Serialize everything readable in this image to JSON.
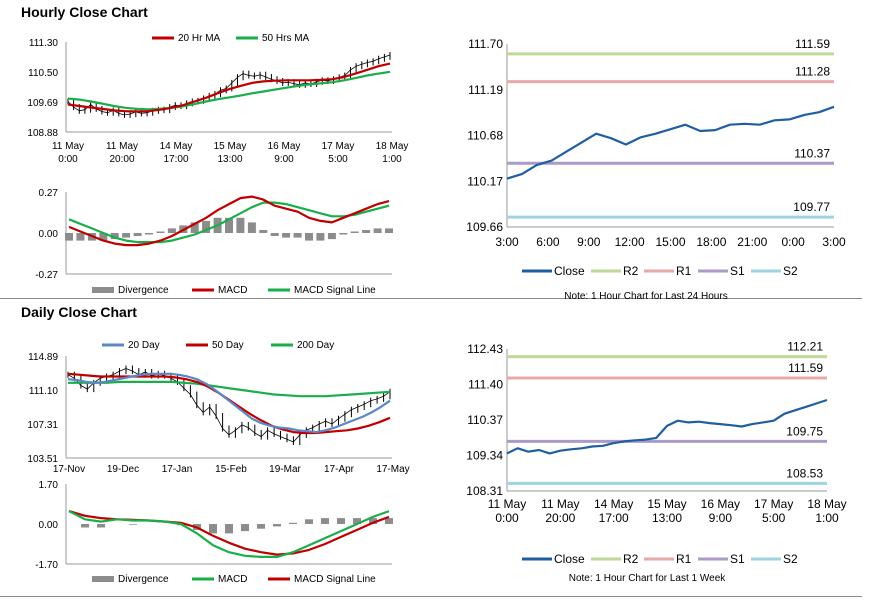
{
  "sections": {
    "hourly_title": "Hourly Close Chart",
    "daily_title": "Daily Close Chart"
  },
  "colors": {
    "close": "#1f5fa0",
    "r2": "#bfd99a",
    "r1": "#e8a8a8",
    "s1": "#ab99c8",
    "s2": "#9fd3e0",
    "ma_red": "#c00000",
    "ma_green": "#1aae4a",
    "ma_blue": "#5b87c5",
    "divergence": "#8c8c8c",
    "axis": "#9a9a9a",
    "price": "#000000"
  },
  "chart_data": [
    {
      "id": "hourly_price",
      "type": "line",
      "title": "",
      "legend": [
        "20 Hr MA",
        "50 Hrs MA"
      ],
      "legend_placement": "top",
      "ylim": [
        108.88,
        111.3
      ],
      "yticks": [
        "111.30",
        "110.50",
        "109.69",
        "108.88"
      ],
      "xticks": [
        [
          "11 May",
          "0:00"
        ],
        [
          "11 May",
          "20:00"
        ],
        [
          "14 May",
          "17:00"
        ],
        [
          "15 May",
          "13:00"
        ],
        [
          "16 May",
          "9:00"
        ],
        [
          "17 May",
          "5:00"
        ],
        [
          "18 May",
          "1:00"
        ]
      ],
      "price": [
        109.7,
        109.55,
        109.45,
        109.48,
        109.62,
        109.5,
        109.43,
        109.4,
        109.46,
        109.38,
        109.34,
        109.36,
        109.42,
        109.38,
        109.4,
        109.45,
        109.48,
        109.47,
        109.55,
        109.6,
        109.58,
        109.65,
        109.7,
        109.72,
        109.78,
        109.85,
        109.9,
        110.0,
        110.05,
        110.2,
        110.35,
        110.45,
        110.4,
        110.38,
        110.42,
        110.36,
        110.3,
        110.25,
        110.2,
        110.22,
        110.18,
        110.15,
        110.2,
        110.17,
        110.23,
        110.27,
        110.25,
        110.3,
        110.35,
        110.4,
        110.55,
        110.65,
        110.7,
        110.75,
        110.78,
        110.85,
        110.9,
        110.95
      ],
      "ma20": [
        109.62,
        109.58,
        109.54,
        109.5,
        109.46,
        109.44,
        109.43,
        109.44,
        109.48,
        109.53,
        109.6,
        109.7,
        109.8,
        109.92,
        110.03,
        110.12,
        110.2,
        110.24,
        110.26,
        110.27,
        110.27,
        110.27,
        110.28,
        110.3,
        110.36,
        110.45,
        110.55,
        110.65,
        110.72
      ],
      "ma50": [
        109.78,
        109.75,
        109.7,
        109.64,
        109.58,
        109.53,
        109.5,
        109.49,
        109.5,
        109.53,
        109.57,
        109.63,
        109.7,
        109.76,
        109.81,
        109.86,
        109.92,
        109.97,
        110.02,
        110.07,
        110.12,
        110.16,
        110.19,
        110.22,
        110.27,
        110.33,
        110.4,
        110.45,
        110.5
      ]
    },
    {
      "id": "hourly_macd",
      "type": "line",
      "ylim": [
        -0.27,
        0.27
      ],
      "yticks": [
        "0.27",
        "0.00",
        "-0.27"
      ],
      "legend": [
        "Divergence",
        "MACD",
        "MACD Signal Line"
      ],
      "legend_placement": "bottom",
      "macd": [
        0.04,
        0.01,
        -0.02,
        -0.05,
        -0.07,
        -0.08,
        -0.08,
        -0.07,
        -0.05,
        -0.02,
        0.02,
        0.06,
        0.1,
        0.15,
        0.19,
        0.23,
        0.24,
        0.22,
        0.18,
        0.16,
        0.14,
        0.1,
        0.08,
        0.07,
        0.1,
        0.13,
        0.16,
        0.19,
        0.21
      ],
      "signal": [
        0.09,
        0.06,
        0.03,
        0.0,
        -0.03,
        -0.05,
        -0.06,
        -0.06,
        -0.06,
        -0.05,
        -0.03,
        -0.01,
        0.02,
        0.05,
        0.09,
        0.13,
        0.17,
        0.2,
        0.2,
        0.19,
        0.17,
        0.15,
        0.13,
        0.11,
        0.11,
        0.12,
        0.14,
        0.16,
        0.18
      ],
      "divergence": [
        -0.05,
        -0.05,
        -0.05,
        -0.05,
        -0.04,
        -0.03,
        -0.02,
        -0.01,
        0.01,
        0.03,
        0.05,
        0.07,
        0.08,
        0.1,
        0.1,
        0.1,
        0.07,
        0.02,
        -0.02,
        -0.03,
        -0.03,
        -0.05,
        -0.05,
        -0.04,
        -0.01,
        0.01,
        0.02,
        0.03,
        0.03
      ]
    },
    {
      "id": "hourly_levels",
      "type": "line",
      "ylim": [
        109.66,
        111.7
      ],
      "yticks": [
        "111.70",
        "111.19",
        "110.68",
        "110.17",
        "109.66"
      ],
      "xticks": [
        "3:00",
        "6:00",
        "9:00",
        "12:00",
        "15:00",
        "18:00",
        "21:00",
        "0:00",
        "3:00"
      ],
      "close": [
        110.2,
        110.25,
        110.35,
        110.4,
        110.5,
        110.6,
        110.7,
        110.65,
        110.58,
        110.66,
        110.7,
        110.75,
        110.8,
        110.73,
        110.74,
        110.8,
        110.81,
        110.8,
        110.85,
        110.86,
        110.91,
        110.94,
        111.0
      ],
      "levels": [
        {
          "label": "R2",
          "value": 111.59
        },
        {
          "label": "R1",
          "value": 111.28
        },
        {
          "label": "S1",
          "value": 110.37
        },
        {
          "label": "S2",
          "value": 109.77
        }
      ],
      "legend": [
        "Close",
        "R2",
        "R1",
        "S1",
        "S2"
      ],
      "note": "Note: 1 Hour Chart for Last 24 Hours"
    },
    {
      "id": "daily_price",
      "type": "line",
      "title": "",
      "legend": [
        "20 Day",
        "50 Day",
        "200 Day"
      ],
      "legend_placement": "top",
      "ylim": [
        103.51,
        114.89
      ],
      "yticks": [
        "114.89",
        "111.10",
        "107.31",
        "103.51"
      ],
      "xticks": [
        "17-Nov",
        "19-Dec",
        "17-Jan",
        "15-Feb",
        "19-Mar",
        "17-Apr",
        "17-May"
      ],
      "price": [
        112.8,
        112.4,
        111.6,
        111.2,
        111.9,
        112.4,
        112.6,
        112.8,
        113.2,
        113.5,
        113.2,
        112.8,
        113.1,
        112.7,
        112.9,
        112.7,
        112.4,
        112.0,
        111.3,
        110.6,
        109.4,
        108.6,
        109.2,
        108.2,
        106.8,
        106.1,
        106.6,
        107.2,
        106.9,
        106.3,
        105.9,
        106.6,
        106.2,
        105.9,
        105.6,
        105.3,
        106.1,
        106.6,
        106.9,
        107.3,
        107.6,
        107.3,
        107.9,
        108.4,
        108.9,
        109.2,
        109.5,
        109.9,
        110.1,
        110.4,
        110.9
      ],
      "ma20": [
        112.3,
        112.2,
        112.0,
        111.9,
        112.0,
        112.2,
        112.4,
        112.6,
        112.8,
        112.9,
        112.9,
        112.9,
        112.8,
        112.6,
        112.3,
        111.8,
        111.1,
        110.3,
        109.5,
        108.7,
        107.9,
        107.4,
        107.1,
        106.9,
        106.8,
        106.6,
        106.5,
        106.4,
        106.6,
        106.9,
        107.3,
        107.7,
        108.1,
        108.6,
        109.2,
        109.9
      ],
      "ma50": [
        112.9,
        112.8,
        112.7,
        112.6,
        112.6,
        112.6,
        112.6,
        112.6,
        112.6,
        112.6,
        112.5,
        112.3,
        112.0,
        111.5,
        110.8,
        110.0,
        109.2,
        108.4,
        107.7,
        107.1,
        106.7,
        106.4,
        106.3,
        106.3,
        106.4,
        106.5,
        106.6,
        106.8,
        107.1,
        107.5,
        108.0
      ],
      "ma200": [
        111.9,
        111.9,
        111.9,
        111.9,
        112.0,
        112.0,
        112.0,
        112.0,
        112.0,
        111.9,
        111.8,
        111.6,
        111.4,
        111.2,
        111.0,
        110.8,
        110.6,
        110.5,
        110.4,
        110.4,
        110.4,
        110.5,
        110.6,
        110.7,
        110.8,
        110.9
      ]
    },
    {
      "id": "daily_macd",
      "type": "line",
      "ylim": [
        -1.7,
        1.7
      ],
      "yticks": [
        "1.70",
        "0.00",
        "-1.70"
      ],
      "legend": [
        "Divergence",
        "MACD",
        "MACD Signal Line"
      ],
      "legend_placement": "bottom",
      "macd": [
        0.55,
        0.2,
        0.1,
        0.2,
        0.15,
        0.15,
        0.1,
        0.0,
        -0.4,
        -0.9,
        -1.2,
        -1.35,
        -1.4,
        -1.4,
        -1.2,
        -0.9,
        -0.6,
        -0.3,
        0.0,
        0.3,
        0.55
      ],
      "signal": [
        0.55,
        0.35,
        0.25,
        0.2,
        0.18,
        0.15,
        0.1,
        0.05,
        -0.15,
        -0.5,
        -0.8,
        -1.05,
        -1.2,
        -1.3,
        -1.25,
        -1.1,
        -0.85,
        -0.55,
        -0.25,
        0.05,
        0.3
      ],
      "divergence": [
        0.0,
        -0.15,
        -0.15,
        0.0,
        -0.03,
        0.0,
        0.0,
        -0.05,
        -0.25,
        -0.4,
        -0.4,
        -0.3,
        -0.2,
        -0.1,
        0.05,
        0.2,
        0.25,
        0.25,
        0.25,
        0.25,
        0.25
      ]
    },
    {
      "id": "daily_levels",
      "type": "line",
      "ylim": [
        108.31,
        112.43
      ],
      "yticks": [
        "112.43",
        "111.40",
        "110.37",
        "109.34",
        "108.31"
      ],
      "xticks": [
        [
          "11 May",
          "0:00"
        ],
        [
          "11 May",
          "20:00"
        ],
        [
          "14 May",
          "17:00"
        ],
        [
          "15 May",
          "13:00"
        ],
        [
          "16 May",
          "9:00"
        ],
        [
          "17 May",
          "5:00"
        ],
        [
          "18 May",
          "1:00"
        ]
      ],
      "close": [
        109.4,
        109.55,
        109.45,
        109.5,
        109.4,
        109.48,
        109.52,
        109.55,
        109.6,
        109.62,
        109.7,
        109.75,
        109.78,
        109.8,
        109.85,
        110.2,
        110.35,
        110.3,
        110.32,
        110.28,
        110.25,
        110.22,
        110.18,
        110.25,
        110.3,
        110.35,
        110.55,
        110.65,
        110.75,
        110.85,
        110.95
      ],
      "levels": [
        {
          "label": "R2",
          "value": 112.21
        },
        {
          "label": "R1",
          "value": 111.59
        },
        {
          "label": "S1",
          "value": 109.75
        },
        {
          "label": "S2",
          "value": 108.53
        }
      ],
      "legend": [
        "Close",
        "R2",
        "R1",
        "S1",
        "S2"
      ],
      "note": "Note: 1 Hour Chart for Last 1 Week"
    }
  ]
}
